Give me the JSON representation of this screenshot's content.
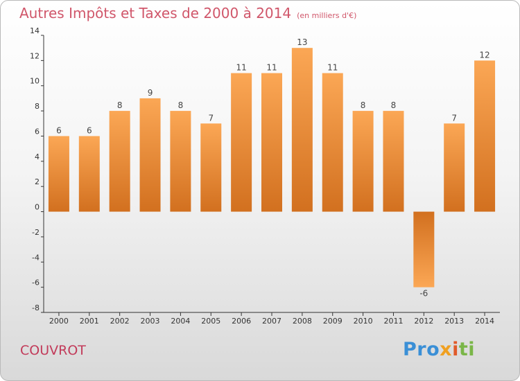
{
  "chart_data": {
    "type": "bar",
    "title": "Autres Impôts et Taxes de 2000 à 2014",
    "unit_note": "(en milliers d'€)",
    "categories": [
      "2000",
      "2001",
      "2002",
      "2003",
      "2004",
      "2005",
      "2006",
      "2007",
      "2008",
      "2009",
      "2010",
      "2011",
      "2012",
      "2013",
      "2014"
    ],
    "values": [
      6,
      6,
      8,
      9,
      8,
      7,
      11,
      11,
      13,
      11,
      8,
      8,
      -6,
      7,
      12
    ],
    "ylim": [
      -8,
      14
    ],
    "yticks": [
      -8,
      -6,
      -4,
      -2,
      0,
      2,
      4,
      6,
      8,
      10,
      12,
      14
    ],
    "xlabel": "",
    "ylabel": "",
    "grid": false,
    "bar_color_light": "#fba755",
    "bar_color_dark": "#d2701f"
  },
  "place_name": "COUVROT",
  "logo": {
    "p1": "Pro",
    "p2": "x",
    "p3": "i",
    "p4": "ti"
  }
}
